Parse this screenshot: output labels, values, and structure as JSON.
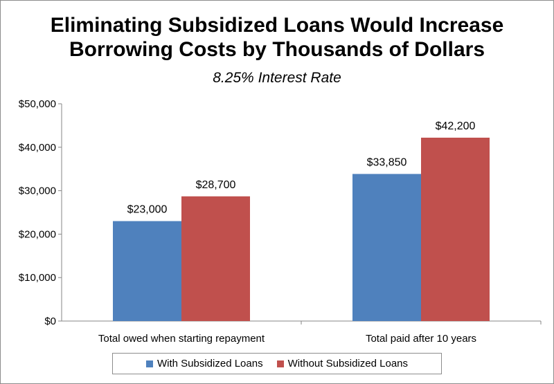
{
  "chart_data": {
    "type": "bar",
    "title_lines": [
      "Eliminating Subsidized Loans Would Increase",
      "Borrowing Costs by Thousands of Dollars"
    ],
    "subtitle": "8.25% Interest Rate",
    "categories": [
      "Total owed when starting repayment",
      "Total paid after 10 years"
    ],
    "series": [
      {
        "name": "With Subsidized Loans",
        "values": [
          23000,
          33850
        ],
        "labels": [
          "$23,000",
          "$33,850"
        ],
        "color": "#4f81bd"
      },
      {
        "name": "Without Subsidized Loans",
        "values": [
          28700,
          42200
        ],
        "labels": [
          "$28,700",
          "$42,200"
        ],
        "color": "#c0504d"
      }
    ],
    "y_ticks": [
      0,
      10000,
      20000,
      30000,
      40000,
      50000
    ],
    "y_tick_labels": [
      "$0",
      "$10,000",
      "$20,000",
      "$30,000",
      "$40,000",
      "$50,000"
    ],
    "ylim": [
      0,
      50000
    ],
    "grid": false,
    "legend_position": "bottom"
  }
}
